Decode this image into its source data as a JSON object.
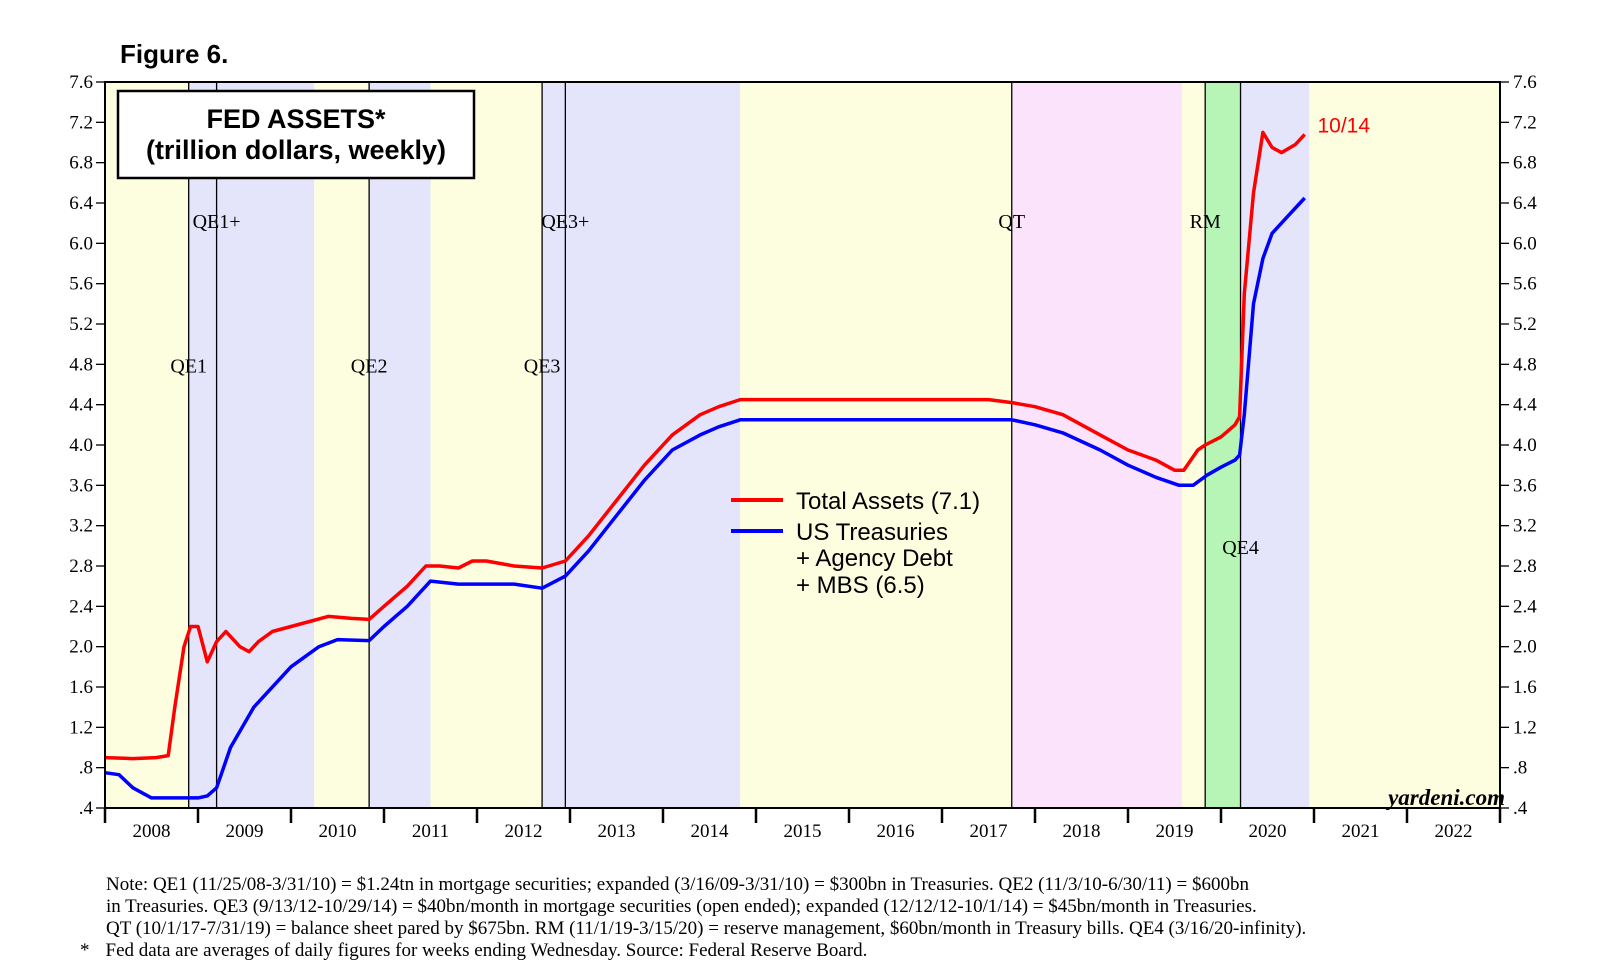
{
  "figure_label": "Figure 6.",
  "chart_data": {
    "type": "line",
    "title_lines": [
      "FED ASSETS*",
      "(trillion dollars, weekly)"
    ],
    "xlim": [
      2008.0,
      2023.0
    ],
    "ylim": [
      0.4,
      7.6
    ],
    "y_ticks": [
      0.4,
      0.8,
      1.2,
      1.6,
      2.0,
      2.4,
      2.8,
      3.2,
      3.6,
      4.0,
      4.4,
      4.8,
      5.2,
      5.6,
      6.0,
      6.4,
      6.8,
      7.2,
      7.6
    ],
    "y_tick_labels": [
      ".4",
      ".8",
      "1.2",
      "1.6",
      "2.0",
      "2.4",
      "2.8",
      "3.2",
      "3.6",
      "4.0",
      "4.4",
      "4.8",
      "5.2",
      "5.6",
      "6.0",
      "6.4",
      "6.8",
      "7.2",
      "7.6"
    ],
    "x_tick_labels": [
      "2008",
      "2009",
      "2010",
      "2011",
      "2012",
      "2013",
      "2014",
      "2015",
      "2016",
      "2017",
      "2018",
      "2019",
      "2020",
      "2021",
      "2022"
    ],
    "shaded_periods": [
      {
        "start": 2008.0,
        "end": 2008.9,
        "color": "#fdfde0"
      },
      {
        "start": 2008.9,
        "end": 2010.25,
        "color": "#e4e4fa"
      },
      {
        "start": 2010.25,
        "end": 2010.84,
        "color": "#fdfde0"
      },
      {
        "start": 2010.84,
        "end": 2011.5,
        "color": "#e4e4fa"
      },
      {
        "start": 2011.5,
        "end": 2012.7,
        "color": "#fdfde0"
      },
      {
        "start": 2012.7,
        "end": 2014.83,
        "color": "#e4e4fa"
      },
      {
        "start": 2014.83,
        "end": 2017.75,
        "color": "#fdfde0"
      },
      {
        "start": 2017.75,
        "end": 2019.58,
        "color": "#fbe4fb"
      },
      {
        "start": 2019.58,
        "end": 2019.83,
        "color": "#fdfde0"
      },
      {
        "start": 2019.83,
        "end": 2020.21,
        "color": "#b6f5b6"
      },
      {
        "start": 2020.21,
        "end": 2020.95,
        "color": "#e4e4fa"
      },
      {
        "start": 2020.95,
        "end": 2023.0,
        "color": "#fdfde0"
      }
    ],
    "vertical_lines": [
      2008.9,
      2009.2,
      2010.84,
      2012.7,
      2012.95,
      2017.75,
      2019.83,
      2020.21
    ],
    "period_labels": [
      {
        "text": "QE1+",
        "x": 2009.2,
        "y": 6.15
      },
      {
        "text": "QE3+",
        "x": 2012.95,
        "y": 6.15
      },
      {
        "text": "QT",
        "x": 2017.75,
        "y": 6.15
      },
      {
        "text": "RM",
        "x": 2019.83,
        "y": 6.15
      },
      {
        "text": "QE1",
        "x": 2008.9,
        "y": 4.72
      },
      {
        "text": "QE2",
        "x": 2010.84,
        "y": 4.72
      },
      {
        "text": "QE3",
        "x": 2012.7,
        "y": 4.72
      },
      {
        "text": "QE4",
        "x": 2020.21,
        "y": 2.92
      }
    ],
    "series": [
      {
        "name": "Total Assets (7.1)",
        "color": "#ff0000",
        "x": [
          2008.0,
          2008.3,
          2008.55,
          2008.68,
          2008.75,
          2008.85,
          2008.92,
          2009.0,
          2009.1,
          2009.2,
          2009.3,
          2009.45,
          2009.55,
          2009.65,
          2009.8,
          2010.0,
          2010.2,
          2010.4,
          2010.65,
          2010.84,
          2011.0,
          2011.25,
          2011.45,
          2011.6,
          2011.8,
          2011.95,
          2012.1,
          2012.4,
          2012.7,
          2012.95,
          2013.2,
          2013.5,
          2013.8,
          2014.1,
          2014.4,
          2014.6,
          2014.83,
          2015.2,
          2015.6,
          2016.0,
          2016.5,
          2017.0,
          2017.5,
          2017.75,
          2018.0,
          2018.3,
          2018.7,
          2019.0,
          2019.3,
          2019.5,
          2019.6,
          2019.75,
          2019.83,
          2020.0,
          2020.15,
          2020.2,
          2020.25,
          2020.35,
          2020.45,
          2020.55,
          2020.65,
          2020.8,
          2020.9
        ],
        "values": [
          0.9,
          0.89,
          0.9,
          0.92,
          1.4,
          2.0,
          2.2,
          2.2,
          1.85,
          2.05,
          2.15,
          2.0,
          1.95,
          2.05,
          2.15,
          2.2,
          2.25,
          2.3,
          2.28,
          2.27,
          2.4,
          2.6,
          2.8,
          2.8,
          2.78,
          2.85,
          2.85,
          2.8,
          2.78,
          2.85,
          3.1,
          3.45,
          3.8,
          4.1,
          4.3,
          4.38,
          4.45,
          4.45,
          4.45,
          4.45,
          4.45,
          4.45,
          4.45,
          4.42,
          4.38,
          4.3,
          4.1,
          3.95,
          3.85,
          3.75,
          3.75,
          3.95,
          4.0,
          4.08,
          4.2,
          4.28,
          5.5,
          6.5,
          7.1,
          6.95,
          6.9,
          6.98,
          7.08
        ]
      },
      {
        "name": "US Treasuries + Agency Debt + MBS (6.5)",
        "color": "#0000ff",
        "x": [
          2008.0,
          2008.15,
          2008.3,
          2008.5,
          2008.85,
          2009.0,
          2009.1,
          2009.2,
          2009.35,
          2009.6,
          2010.0,
          2010.3,
          2010.5,
          2010.84,
          2011.0,
          2011.25,
          2011.5,
          2011.8,
          2012.1,
          2012.4,
          2012.7,
          2012.95,
          2013.2,
          2013.5,
          2013.8,
          2014.1,
          2014.4,
          2014.6,
          2014.83,
          2015.2,
          2015.6,
          2016.0,
          2016.5,
          2017.0,
          2017.5,
          2017.75,
          2018.0,
          2018.3,
          2018.7,
          2019.0,
          2019.3,
          2019.55,
          2019.7,
          2019.85,
          2020.0,
          2020.15,
          2020.2,
          2020.25,
          2020.35,
          2020.45,
          2020.55,
          2020.7,
          2020.9
        ],
        "values": [
          0.75,
          0.73,
          0.6,
          0.5,
          0.5,
          0.5,
          0.52,
          0.6,
          1.0,
          1.4,
          1.8,
          2.0,
          2.07,
          2.06,
          2.2,
          2.4,
          2.65,
          2.62,
          2.62,
          2.62,
          2.58,
          2.7,
          2.95,
          3.3,
          3.65,
          3.95,
          4.1,
          4.18,
          4.25,
          4.25,
          4.25,
          4.25,
          4.25,
          4.25,
          4.25,
          4.25,
          4.2,
          4.12,
          3.95,
          3.8,
          3.68,
          3.6,
          3.6,
          3.7,
          3.78,
          3.85,
          3.9,
          4.3,
          5.4,
          5.85,
          6.1,
          6.25,
          6.45
        ]
      }
    ],
    "end_annotation": {
      "text": "10/14",
      "x": 2020.93,
      "y": 7.08
    },
    "legend": [
      {
        "lines": [
          "Total Assets (7.1)"
        ],
        "color": "#ff0000"
      },
      {
        "lines": [
          "US Treasuries",
          "+ Agency Debt",
          "+ MBS (6.5)"
        ],
        "color": "#0000ff"
      }
    ],
    "source_label": "yardeni.com"
  },
  "notes": {
    "line1": "Note: QE1 (11/25/08-3/31/10) = $1.24tn in mortgage securities; expanded (3/16/09-3/31/10) = $300bn in Treasuries. QE2 (11/3/10-6/30/11) = $600bn",
    "line2": "in Treasuries. QE3 (9/13/12-10/29/14) = $40bn/month in mortgage securities (open ended); expanded (12/12/12-10/1/14) = $45bn/month in Treasuries.",
    "line3": "QT (10/1/17-7/31/19) = balance sheet pared by $675bn. RM (11/1/19-3/15/20) = reserve management, $60bn/month in Treasury bills. QE4 (3/16/20-infinity).",
    "footnote_marker": "*",
    "footnote": "Fed data are averages of daily figures for weeks ending Wednesday. Source: Federal Reserve Board."
  }
}
